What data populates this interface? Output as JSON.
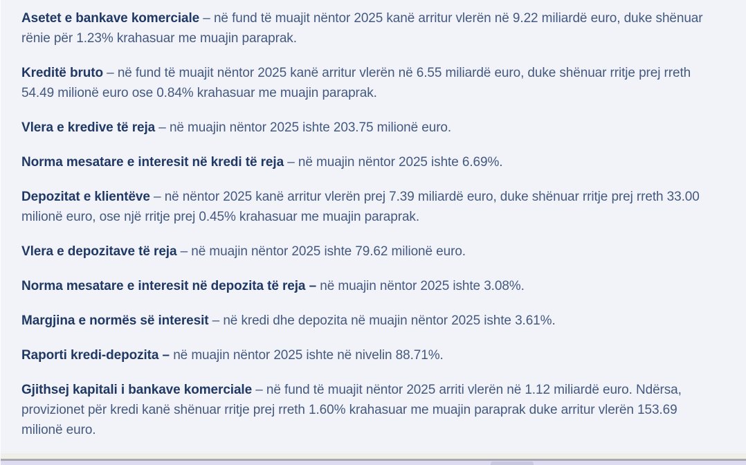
{
  "page": {
    "background_color": "#f2f3f9",
    "heading_color": "#203864",
    "body_text_color": "#44597f"
  },
  "paragraphs": [
    {
      "title": "Asetet e bankave komerciale",
      "sep": " – ",
      "body": "në fund të muajit nëntor 2025 kanë arritur vlerën në 9.22 miliardë euro, duke shënuar rënie për 1.23% krahasuar me muajin paraprak."
    },
    {
      "title": "Kreditë bruto",
      "sep": " – ",
      "body": "në fund të muajit nëntor 2025 kanë arritur vlerën në 6.55 miliardë euro, duke shënuar rritje prej rreth 54.49 milionë euro ose 0.84% krahasuar me muajin paraprak."
    },
    {
      "title": "Vlera e kredive të reja",
      "sep": " – ",
      "body": "në muajin nëntor 2025 ishte 203.75 milionë euro."
    },
    {
      "title": "Norma mesatare e interesit në kredi të reja",
      "sep": " – ",
      "body": "në muajin nëntor 2025 ishte 6.69%."
    },
    {
      "title": "Depozitat e klientëve",
      "sep": " – ",
      "body": "në nëntor 2025 kanë arritur vlerën prej 7.39 miliardë euro, duke shënuar rritje prej rreth 33.00 milionë euro, ose një rritje prej 0.45% krahasuar me muajin paraprak."
    },
    {
      "title": "Vlera e depozitave të reja",
      "sep": " – ",
      "body": "në muajin nëntor 2025 ishte 79.62 milionë euro."
    },
    {
      "title": "Norma mesatare e interesit në depozita të reja –",
      "sep": " ",
      "body": "në muajin nëntor 2025 ishte 3.08%."
    },
    {
      "title": "Margjina e normës së interesit",
      "sep": " – ",
      "body": "në kredi dhe depozita në muajin nëntor 2025 ishte 3.61%."
    },
    {
      "title": "Raporti kredi-depozita –",
      "sep": " ",
      "body": "në muajin nëntor 2025 ishte në nivelin 88.71%."
    },
    {
      "title": "Gjithsej kapitali i bankave komerciale",
      "sep": " – ",
      "body": "në fund të muajit nëntor 2025 arriti vlerën në 1.12 miliardë euro. Ndërsa, provizionet për kredi kanë shënuar rritje prej rreth 1.60% krahasuar me muajin paraprak duke arritur vlerën 153.69 milionë euro."
    }
  ],
  "scrollbar": {
    "strip_color": "#efeee9",
    "border_color": "#a9a8af",
    "track_color": "#dcdbf1",
    "thumb_color": "#c9c8e2"
  }
}
